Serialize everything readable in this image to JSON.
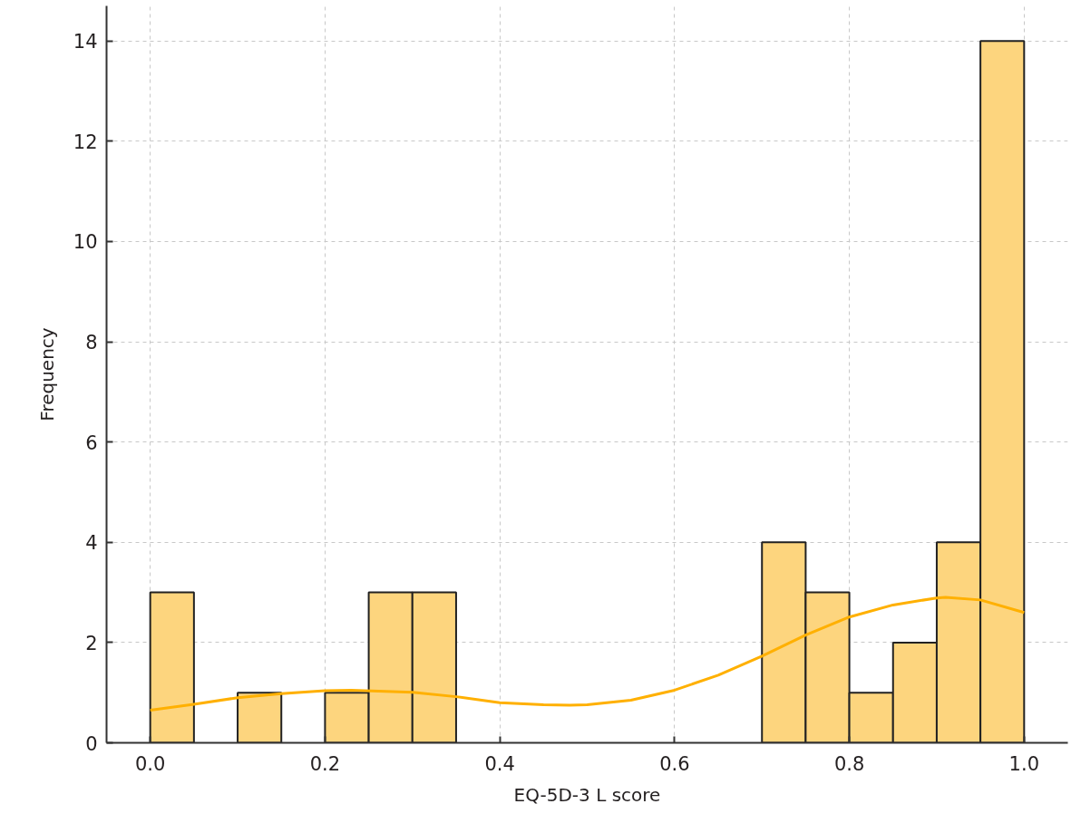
{
  "chart_data": {
    "type": "histogram",
    "xlabel": "EQ-5D-3 L score",
    "ylabel": "Frequency",
    "bins": [
      0,
      0.05,
      0.1,
      0.15,
      0.2,
      0.25,
      0.3,
      0.35,
      0.4,
      0.45,
      0.5,
      0.55,
      0.6,
      0.65,
      0.7,
      0.75,
      0.8,
      0.85,
      0.9,
      0.95,
      1.0
    ],
    "series": [
      {
        "type": "histogram",
        "color": "#fdd57e",
        "values": [
          3,
          0,
          1,
          0,
          1,
          3,
          3,
          0,
          0,
          0,
          0,
          0,
          0,
          0,
          4,
          3,
          1,
          2,
          4,
          14
        ]
      },
      {
        "type": "line",
        "color": "#ffb000",
        "x": [
          0,
          0.05,
          0.1,
          0.15,
          0.2,
          0.23,
          0.3,
          0.35,
          0.4,
          0.45,
          0.48,
          0.5,
          0.55,
          0.6,
          0.65,
          0.7,
          0.75,
          0.8,
          0.85,
          0.9,
          0.91,
          0.95,
          1.0
        ],
        "values": [
          0.65,
          0.77,
          0.9,
          0.98,
          1.04,
          1.05,
          1.01,
          0.92,
          0.8,
          0.76,
          0.75,
          0.76,
          0.85,
          1.05,
          1.35,
          1.73,
          2.15,
          2.51,
          2.75,
          2.89,
          2.9,
          2.85,
          2.6
        ]
      }
    ],
    "xlim": [
      -0.05,
      1.05
    ],
    "ylim": [
      0,
      14.7
    ],
    "xticks": [
      {
        "value": 0,
        "label": "0.0"
      },
      {
        "value": 0.2,
        "label": "0.2"
      },
      {
        "value": 0.4,
        "label": "0.4"
      },
      {
        "value": 0.6,
        "label": "0.6"
      },
      {
        "value": 0.8,
        "label": "0.8"
      },
      {
        "value": 1.0,
        "label": "1.0"
      }
    ],
    "yticks": [
      0,
      2,
      4,
      6,
      8,
      10,
      12,
      14
    ],
    "grid": true,
    "line_style": "solid"
  }
}
